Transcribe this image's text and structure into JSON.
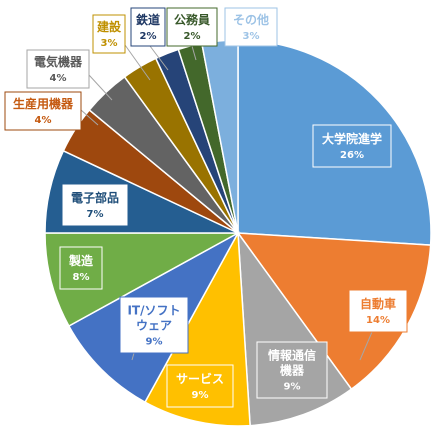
{
  "chart_data": {
    "type": "pie",
    "title": "",
    "slices": [
      {
        "label": "大学院進学",
        "value": 26,
        "display": "26%",
        "color": "#5b9bd5",
        "text_color": "#ffffff"
      },
      {
        "label": "自動車",
        "value": 14,
        "display": "14%",
        "color": "#ed7d31",
        "text_color": "#ed7d31"
      },
      {
        "label": "情報通信機器",
        "value": 9,
        "display": "9%",
        "color": "#a5a5a5",
        "text_color": "#ffffff"
      },
      {
        "label": "サービス",
        "value": 9,
        "display": "9%",
        "color": "#ffc000",
        "text_color": "#ffffff"
      },
      {
        "label": "IT/ソフトウェア",
        "value": 9,
        "display": "9%",
        "color": "#4472c4",
        "text_color": "#4472c4"
      },
      {
        "label": "製造",
        "value": 8,
        "display": "8%",
        "color": "#70ad47",
        "text_color": "#ffffff"
      },
      {
        "label": "電子部品",
        "value": 7,
        "display": "7%",
        "color": "#255e91",
        "text_color": "#1f4e79"
      },
      {
        "label": "生産用機器",
        "value": 4,
        "display": "4%",
        "color": "#9e480e",
        "text_color": "#c55a11"
      },
      {
        "label": "電気機器",
        "value": 4,
        "display": "4%",
        "color": "#636363",
        "text_color": "#595959"
      },
      {
        "label": "建設",
        "value": 3,
        "display": "3%",
        "color": "#997300",
        "text_color": "#bf9000"
      },
      {
        "label": "鉄道",
        "value": 2,
        "display": "2%",
        "color": "#264478",
        "text_color": "#1f3864"
      },
      {
        "label": "公務員",
        "value": 2,
        "display": "2%",
        "color": "#43682b",
        "text_color": "#38582a"
      },
      {
        "label": "その他",
        "value": 3,
        "display": "3%",
        "color": "#7cafdd",
        "text_color": "#9dc3e6"
      }
    ]
  }
}
